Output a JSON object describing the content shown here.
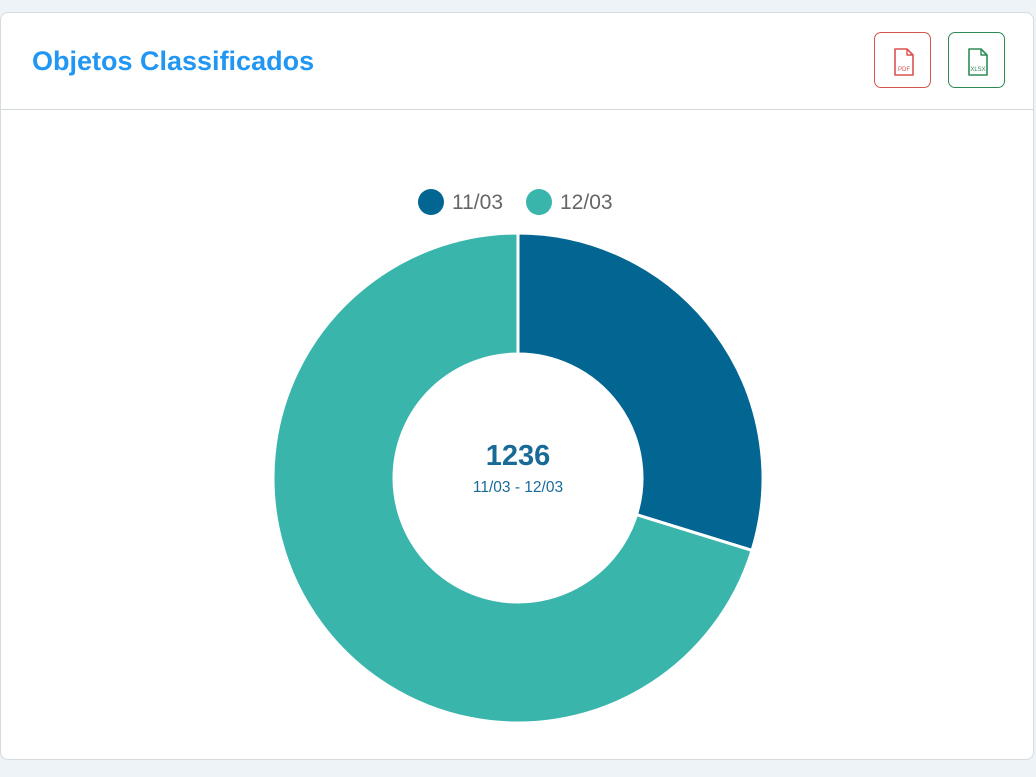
{
  "card": {
    "title": "Objetos Classificados",
    "export_pdf_label": "PDF",
    "export_xlsx_label": "XLSX"
  },
  "chart_data": {
    "type": "donut",
    "series": [
      {
        "name": "11/03",
        "value": 368,
        "color": "#036692"
      },
      {
        "name": "12/03",
        "value": 868,
        "color": "#39b5ac"
      }
    ],
    "legend_position": "top",
    "center_value": "1236",
    "center_label": "11/03 - 12/03"
  },
  "colors": {
    "title": "#2196f3",
    "pdf": "#d9534f",
    "xlsx": "#2e8b57"
  }
}
